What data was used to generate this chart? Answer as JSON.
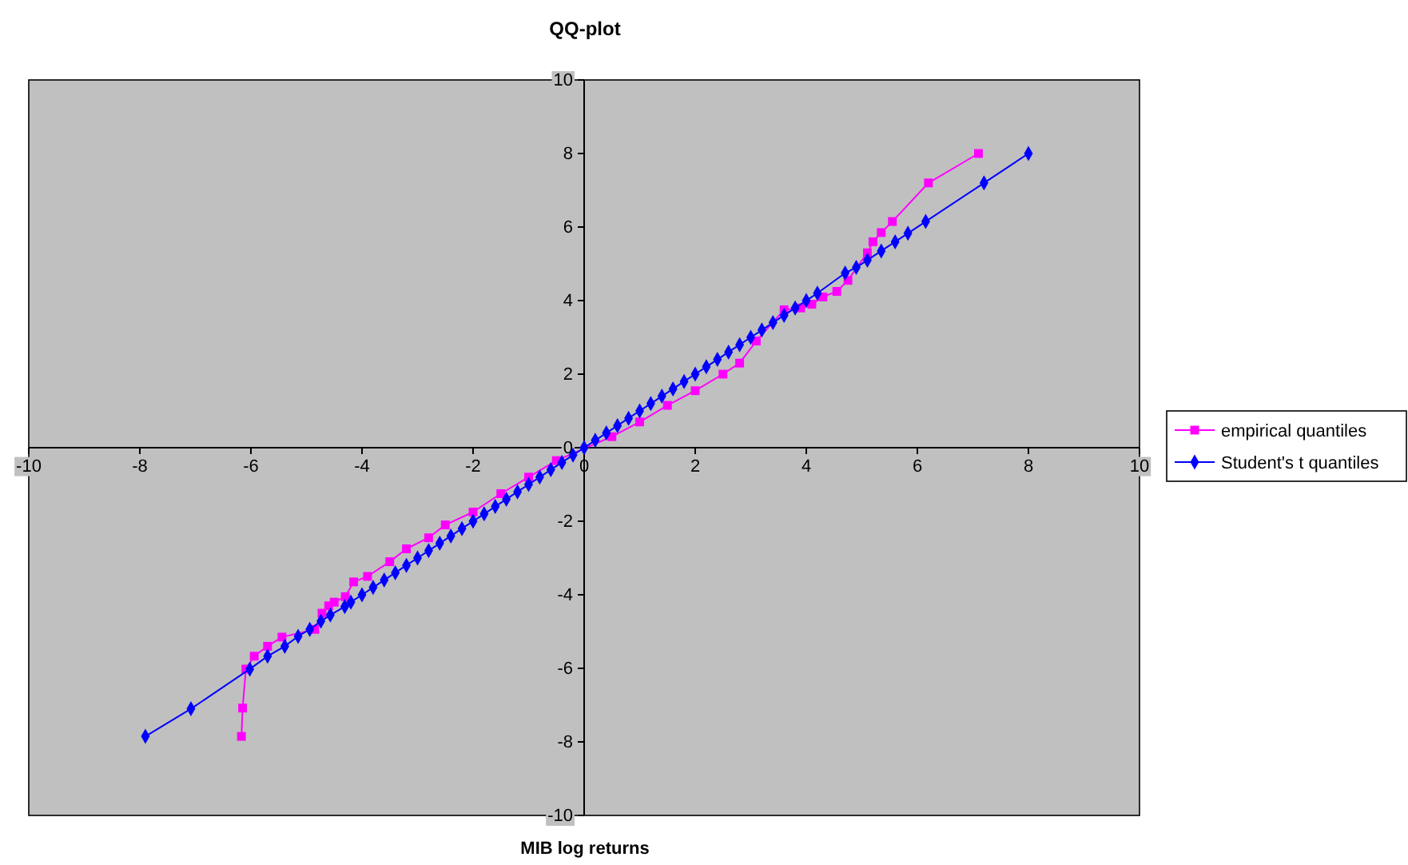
{
  "chart_data": {
    "type": "line",
    "title": "QQ-plot",
    "xlabel": "MIB log returns",
    "xlim": [
      -10,
      10
    ],
    "ylim": [
      -10,
      10
    ],
    "xticks": [
      -10,
      -8,
      -6,
      -4,
      -2,
      0,
      2,
      4,
      6,
      8,
      10
    ],
    "yticks": [
      -10,
      -8,
      -6,
      -4,
      -2,
      0,
      2,
      4,
      6,
      8,
      10
    ],
    "grid": false,
    "legend": "right",
    "series": [
      {
        "name": "empirical quantiles",
        "color": "#ff00ff",
        "marker": "square",
        "x": [
          -6.17,
          -6.15,
          -6.09,
          -5.94,
          -5.7,
          -5.44,
          -4.85,
          -4.72,
          -4.6,
          -4.5,
          -4.3,
          -4.15,
          -3.9,
          -3.5,
          -3.2,
          -2.8,
          -2.5,
          -2.0,
          -1.5,
          -1.0,
          -0.5,
          0,
          0.5,
          1.0,
          1.5,
          2.0,
          2.5,
          2.8,
          3.1,
          3.4,
          3.6,
          3.9,
          4.1,
          4.3,
          4.55,
          4.75,
          4.95,
          5.1,
          5.2,
          5.35,
          5.55,
          6.2,
          7.1
        ],
        "values": [
          -7.85,
          -7.08,
          -6.02,
          -5.67,
          -5.4,
          -5.15,
          -4.94,
          -4.5,
          -4.3,
          -4.2,
          -4.05,
          -3.65,
          -3.5,
          -3.1,
          -2.75,
          -2.45,
          -2.1,
          -1.75,
          -1.25,
          -0.8,
          -0.35,
          null,
          0.3,
          0.7,
          1.15,
          1.55,
          2.0,
          2.3,
          2.9,
          null,
          3.75,
          3.8,
          3.9,
          4.1,
          4.25,
          4.55,
          null,
          5.3,
          5.6,
          5.85,
          6.15,
          7.2,
          8.0
        ]
      },
      {
        "name": "Student's t quantiles",
        "color": "#0000ff",
        "marker": "diamond",
        "x": [
          -7.9,
          -7.08,
          -6.02,
          -5.7,
          -5.39,
          -5.15,
          -4.94,
          -4.74,
          -4.57,
          -4.31,
          -4.2,
          -4.0,
          -3.8,
          -3.6,
          -3.4,
          -3.2,
          -3.0,
          -2.8,
          -2.6,
          -2.4,
          -2.2,
          -2.0,
          -1.8,
          -1.6,
          -1.4,
          -1.2,
          -1.0,
          -0.8,
          -0.6,
          -0.4,
          -0.2,
          0,
          0.2,
          0.4,
          0.6,
          0.8,
          1.0,
          1.2,
          1.4,
          1.6,
          1.8,
          2.0,
          2.2,
          2.4,
          2.6,
          2.8,
          3.0,
          3.2,
          3.4,
          3.6,
          3.8,
          4.0,
          4.2,
          4.7,
          4.9,
          5.1,
          5.35,
          5.6,
          5.83,
          6.15,
          7.2,
          8.0
        ],
        "values": [
          -7.85,
          -7.1,
          -6.02,
          -5.67,
          -5.4,
          -5.13,
          -4.94,
          -4.72,
          -4.55,
          -4.32,
          -4.2,
          -4.0,
          -3.8,
          -3.6,
          -3.4,
          -3.2,
          -3.0,
          -2.8,
          -2.6,
          -2.4,
          -2.2,
          -2.0,
          -1.8,
          -1.6,
          -1.4,
          -1.2,
          -1.0,
          -0.8,
          -0.6,
          -0.4,
          -0.2,
          0,
          0.2,
          0.4,
          0.6,
          0.8,
          1.0,
          1.2,
          1.4,
          1.6,
          1.8,
          2.0,
          2.2,
          2.4,
          2.6,
          2.8,
          3.0,
          3.2,
          3.4,
          3.6,
          3.8,
          4.0,
          4.2,
          4.75,
          4.9,
          5.1,
          5.35,
          5.6,
          5.83,
          6.15,
          7.2,
          8.0
        ]
      }
    ]
  }
}
